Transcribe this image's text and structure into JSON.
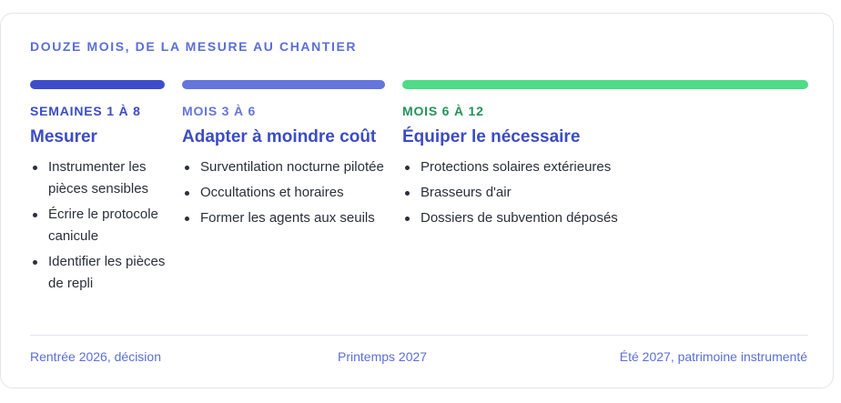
{
  "title": "DOUZE MOIS, DE LA MESURE AU CHANTIER",
  "colors": {
    "phase1_bar": "#3d4dc9",
    "phase2_bar": "#6475db",
    "phase3_bar": "#4fdb88",
    "phase3_label": "#23925a",
    "label_blue": "#3b4cc4",
    "accent": "#5a6fd6"
  },
  "phases": [
    {
      "label": "SEMAINES 1 À 8",
      "heading": "Mesurer",
      "items": [
        "Instrumenter les pièces sensibles",
        "Écrire le protocole canicule",
        "Identifier les pièces de repli"
      ]
    },
    {
      "label": "MOIS 3 À 6",
      "heading": "Adapter à moindre coût",
      "items": [
        "Surventilation nocturne pilotée",
        "Occultations et horaires",
        "Former les agents aux seuils"
      ]
    },
    {
      "label": "MOIS 6 À 12",
      "heading": "Équiper le nécessaire",
      "items": [
        "Protections solaires extérieures",
        "Brasseurs d'air",
        "Dossiers de subvention déposés"
      ]
    }
  ],
  "milestones": {
    "start": "Rentrée 2026, décision",
    "middle": "Printemps 2027",
    "end": "Été 2027, patrimoine instrumenté"
  }
}
